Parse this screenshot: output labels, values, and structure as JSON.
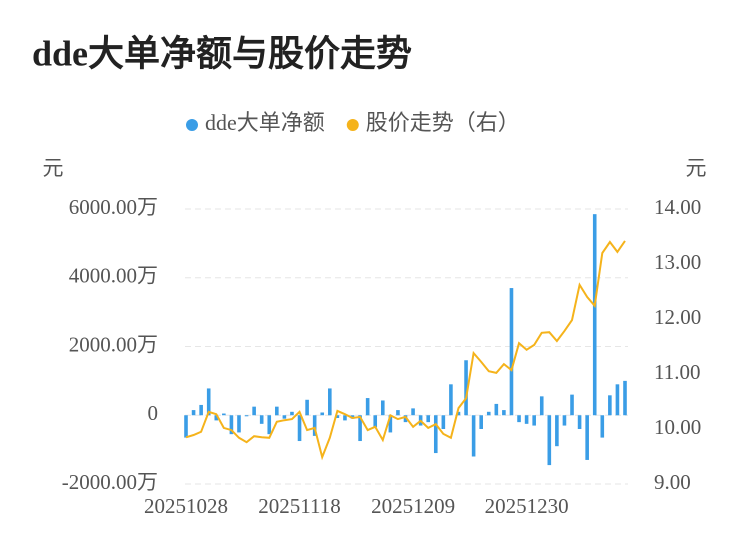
{
  "chart_data": {
    "type": "bar_line",
    "title": "dde大单净额与股价走势",
    "ylabel": "元",
    "y2label": "元",
    "categories": [
      "20251028",
      null,
      null,
      null,
      null,
      null,
      null,
      null,
      null,
      null,
      null,
      null,
      null,
      null,
      null,
      "20251118",
      null,
      null,
      null,
      null,
      null,
      null,
      null,
      null,
      null,
      null,
      null,
      null,
      null,
      null,
      "20251209",
      null,
      null,
      null,
      null,
      null,
      null,
      null,
      null,
      null,
      null,
      null,
      null,
      null,
      null,
      "20251230",
      null,
      null,
      null,
      null,
      null,
      null,
      null,
      null,
      null,
      null,
      null,
      null,
      null
    ],
    "series": [
      {
        "name": "dde大单净额",
        "type": "bar",
        "color": "#3a9de6",
        "values": [
          -650,
          150,
          300,
          780,
          -150,
          50,
          -550,
          -500,
          -30,
          250,
          -250,
          -550,
          250,
          -100,
          100,
          -750,
          450,
          -600,
          80,
          780,
          -80,
          -150,
          -100,
          -750,
          500,
          -350,
          430,
          -500,
          150,
          -200,
          200,
          -300,
          -200,
          -1100,
          -400,
          900,
          100,
          1600,
          -1200,
          -400,
          100,
          330,
          150,
          3700,
          -200,
          -250,
          -300,
          550,
          -1450,
          -900,
          -300,
          600,
          -400,
          -1300,
          5850,
          -650,
          580,
          900,
          1000
        ]
      },
      {
        "name": "股价走势（右）",
        "type": "line",
        "axis": "y2",
        "color": "#f5b31b",
        "values": [
          9.85,
          9.89,
          9.95,
          10.31,
          10.27,
          10.02,
          9.98,
          9.84,
          9.76,
          9.87,
          9.85,
          9.84,
          10.13,
          10.16,
          10.18,
          10.31,
          9.98,
          10.02,
          9.49,
          9.84,
          10.33,
          10.27,
          10.2,
          10.22,
          9.98,
          10.04,
          9.8,
          10.25,
          10.18,
          10.22,
          10.04,
          10.15,
          10.02,
          10.09,
          9.91,
          9.84,
          10.38,
          10.56,
          11.38,
          11.22,
          11.05,
          11.02,
          11.18,
          11.07,
          11.56,
          11.44,
          11.53,
          11.75,
          11.76,
          11.6,
          11.78,
          11.98,
          12.62,
          12.4,
          12.24,
          13.2,
          13.4,
          13.22,
          13.42
        ]
      }
    ],
    "ylim": [
      -2000,
      6000
    ],
    "yticks": [
      {
        "value": -2000,
        "label": "-2000.00万"
      },
      0,
      {
        "value": 2000,
        "label": "2000.00万"
      },
      {
        "value": 4000,
        "label": "4000.00万"
      },
      {
        "value": 6000,
        "label": "6000.00万"
      }
    ],
    "y2lim": [
      9,
      14
    ],
    "y2ticks": [
      {
        "value": 9,
        "label": "9.00"
      },
      {
        "value": 10,
        "label": "10.00"
      },
      {
        "value": 11,
        "label": "11.00"
      },
      {
        "value": 12,
        "label": "12.00"
      },
      {
        "value": 13,
        "label": "13.00"
      },
      {
        "value": 14,
        "label": "14.00"
      }
    ],
    "grid": true,
    "legend": "top"
  }
}
